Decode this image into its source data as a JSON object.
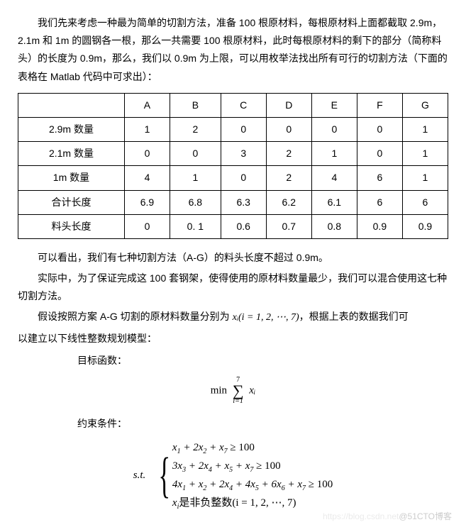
{
  "paragraphs": {
    "p1": "我们先来考虑一种最为简单的切割方法，准备 100 根原材料，每根原材料上面都截取 2.9m，2.1m 和 1m 的圆钢各一根，那么一共需要 100 根原材料，此时每根原材料的剩下的部分（简称料头）的长度为 0.9m，那么，我们以 0.9m 为上限，可以用枚举法找出所有可行的切割方法（下面的表格在 Matlab 代码中可求出）："
  },
  "table": {
    "columns": [
      "",
      "A",
      "B",
      "C",
      "D",
      "E",
      "F",
      "G"
    ],
    "rows": [
      {
        "label": "2.9m 数量",
        "cells": [
          "1",
          "2",
          "0",
          "0",
          "0",
          "0",
          "1"
        ]
      },
      {
        "label": "2.1m 数量",
        "cells": [
          "0",
          "0",
          "3",
          "2",
          "1",
          "0",
          "1"
        ]
      },
      {
        "label": "1m 数量",
        "cells": [
          "4",
          "1",
          "0",
          "2",
          "4",
          "6",
          "1"
        ]
      },
      {
        "label": "合计长度",
        "cells": [
          "6.9",
          "6.8",
          "6.3",
          "6.2",
          "6.1",
          "6",
          "6"
        ]
      },
      {
        "label": "料头长度",
        "cells": [
          "0",
          "0. 1",
          "0.6",
          "0.7",
          "0.8",
          "0.9",
          "0.9"
        ]
      }
    ]
  },
  "after_table": {
    "p2": "可以看出，我们有七种切割方法（A-G）的料头长度不超过 0.9m。",
    "p3": "实际中，为了保证完成这 100 套钢架，使得使用的原材料数量最少，我们可以混合使用这七种切割方法。",
    "p4_prefix": "假设按照方案 A-G 切割的原材料数量分别为 ",
    "p4_var": "xᵢ(i = 1, 2, ⋯, 7)",
    "p4_suffix": "，根据上表的数据我们可",
    "p5": "以建立以下线性整数规划模型："
  },
  "labels": {
    "objective": "目标函数：",
    "constraints": "约束条件："
  },
  "objective": {
    "min": "min",
    "sum_upper": "7",
    "sum_lower": "i=1",
    "sum_var": "xᵢ"
  },
  "st_label": "s.t.",
  "constraints_lines": {
    "c1_a": "x",
    "c1_s1": "1",
    "c1_b": " + 2x",
    "c1_s2": "2",
    "c1_c": " + x",
    "c1_s3": "7",
    "c1_d": " ≥ 100",
    "c2_a": "3x",
    "c2_s1": "3",
    "c2_b": " + 2x",
    "c2_s2": "4",
    "c2_c": " + x",
    "c2_s3": "5",
    "c2_d": " + x",
    "c2_s4": "7",
    "c2_e": " ≥ 100",
    "c3_a": "4x",
    "c3_s1": "1",
    "c3_b": " + x",
    "c3_s2": "2",
    "c3_c": " + 2x",
    "c3_s3": "4",
    "c3_d": " + 4x",
    "c3_s4": "5",
    "c3_e": " + 6x",
    "c3_s5": "6",
    "c3_f": " + x",
    "c3_s6": "7",
    "c3_g": " ≥ 100",
    "c4_a": "x",
    "c4_s1": "i",
    "c4_b": "是非负整数(i = 1, 2, ⋯, 7)"
  },
  "watermark": {
    "faded": "https://blog.csdn.net",
    "main": "@51CTO博客"
  }
}
